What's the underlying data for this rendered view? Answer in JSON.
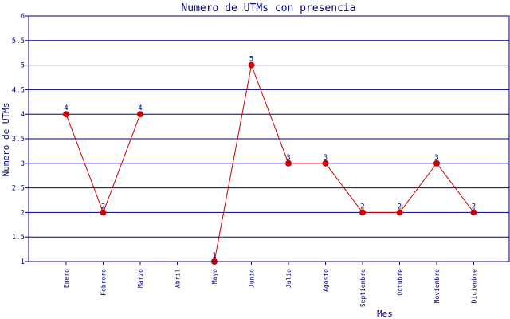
{
  "chart_data": {
    "type": "line",
    "title": "Numero de UTMs con presencia",
    "xlabel": "Mes",
    "ylabel": "Numero de UTMs",
    "categories": [
      "Enero",
      "Febrero",
      "Marzo",
      "Abril",
      "Mayo",
      "Junio",
      "Julio",
      "Agosto",
      "Septiembre",
      "Octubre",
      "Noviembre",
      "Diciembre"
    ],
    "values": [
      4,
      2,
      4,
      null,
      1,
      5,
      3,
      3,
      2,
      2,
      3,
      2
    ],
    "ylim": [
      1,
      6
    ],
    "yticks": [
      "1",
      "1.5",
      "2",
      "2.5",
      "3",
      "3.5",
      "4",
      "4.5",
      "5",
      "5.5",
      "6"
    ],
    "grid": true,
    "colors": {
      "line": "#cc0000",
      "point": "#cc0000",
      "grid": "#000080",
      "text": "#000080",
      "frame": "#000080"
    }
  }
}
